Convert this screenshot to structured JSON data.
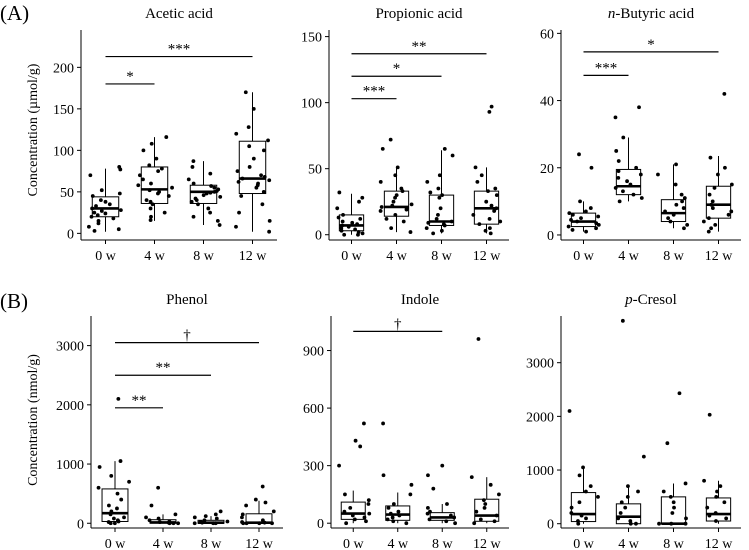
{
  "labels": {
    "panel_a": "(A)",
    "panel_b": "(B)",
    "ylabel_a": "Concentration (µmol/g)",
    "ylabel_b": "Concentration (nmol/g)"
  },
  "chart_data": [
    {
      "type": "box",
      "title": "Acetic acid",
      "title_pre": "",
      "title_post": "Acetic acid",
      "categories": [
        "0 w",
        "4 w",
        "8 w",
        "12 w"
      ],
      "ylabel": "Concentration (µmol/g)",
      "ylim": [
        -8,
        245
      ],
      "yticks": [
        0,
        50,
        100,
        150,
        200
      ],
      "boxes": [
        {
          "min": 2,
          "q1": 20,
          "median": 30,
          "q3": 44,
          "max": 78
        },
        {
          "min": 15,
          "q1": 36,
          "median": 53,
          "q3": 80,
          "max": 116
        },
        {
          "min": 10,
          "q1": 36,
          "median": 50,
          "q3": 58,
          "max": 87
        },
        {
          "min": 2,
          "q1": 48,
          "median": 66,
          "q3": 111,
          "max": 170
        }
      ],
      "points": [
        [
          80,
          77,
          70,
          52,
          48,
          45,
          40,
          38,
          35,
          33,
          30,
          28,
          27,
          25,
          24,
          22,
          20,
          18,
          15,
          12,
          8,
          5,
          3
        ],
        [
          116,
          108,
          100,
          90,
          82,
          78,
          75,
          70,
          65,
          60,
          58,
          55,
          52,
          50,
          48,
          45,
          40,
          38,
          35,
          30,
          25,
          20,
          16
        ],
        [
          87,
          80,
          72,
          65,
          60,
          57,
          55,
          53,
          51,
          50,
          49,
          48,
          46,
          44,
          42,
          40,
          38,
          35,
          30,
          25,
          20,
          15,
          10
        ],
        [
          170,
          150,
          128,
          120,
          112,
          105,
          100,
          90,
          80,
          75,
          70,
          68,
          66,
          64,
          62,
          60,
          58,
          55,
          50,
          45,
          35,
          25,
          15,
          8,
          2
        ]
      ],
      "significance": [
        {
          "from": "0 w",
          "to": "4 w",
          "y": 180,
          "label": "*"
        },
        {
          "from": "0 w",
          "to": "12 w",
          "y": 213,
          "label": "***"
        }
      ]
    },
    {
      "type": "box",
      "title": "Propionic acid",
      "title_pre": "",
      "title_post": "Propionic acid",
      "categories": [
        "0 w",
        "4 w",
        "8 w",
        "12 w"
      ],
      "ylabel": "",
      "ylim": [
        -4,
        155
      ],
      "yticks": [
        0,
        50,
        100,
        150
      ],
      "boxes": [
        {
          "min": 0,
          "q1": 3,
          "median": 7,
          "q3": 15,
          "max": 31
        },
        {
          "min": 2,
          "q1": 14,
          "median": 21,
          "q3": 33,
          "max": 51
        },
        {
          "min": 1,
          "q1": 7,
          "median": 10,
          "q3": 30,
          "max": 64
        },
        {
          "min": 1,
          "q1": 8,
          "median": 20,
          "q3": 33,
          "max": 51
        }
      ],
      "points": [
        [
          32,
          28,
          25,
          20,
          15,
          13,
          12,
          10,
          9,
          8,
          7,
          6,
          5,
          4,
          3,
          2,
          1,
          0,
          0
        ],
        [
          72,
          65,
          51,
          45,
          40,
          35,
          33,
          30,
          28,
          25,
          23,
          22,
          21,
          20,
          19,
          18,
          15,
          12,
          10,
          5,
          2
        ],
        [
          65,
          60,
          45,
          40,
          35,
          32,
          30,
          28,
          20,
          15,
          12,
          10,
          9,
          8,
          7,
          5,
          3,
          1
        ],
        [
          97,
          93,
          51,
          45,
          40,
          35,
          33,
          30,
          25,
          22,
          20,
          18,
          15,
          12,
          10,
          8,
          5,
          3,
          1
        ]
      ],
      "significance": [
        {
          "from": "0 w",
          "to": "4 w",
          "y": 103,
          "label": "***"
        },
        {
          "from": "0 w",
          "to": "8 w",
          "y": 120,
          "label": "*"
        },
        {
          "from": "0 w",
          "to": "12 w",
          "y": 137,
          "label": "**"
        }
      ]
    },
    {
      "type": "box",
      "title": "n-Butyric acid",
      "title_pre": "n",
      "title_post": "-Butyric acid",
      "categories": [
        "0 w",
        "4 w",
        "8 w",
        "12 w"
      ],
      "ylabel": "",
      "ylim": [
        -1.5,
        61
      ],
      "yticks": [
        0,
        20,
        40,
        60
      ],
      "boxes": [
        {
          "min": 1,
          "q1": 2.5,
          "median": 4,
          "q3": 6.5,
          "max": 10
        },
        {
          "min": 10,
          "q1": 12,
          "median": 14.5,
          "q3": 19.5,
          "max": 29
        },
        {
          "min": 2,
          "q1": 4,
          "median": 6.5,
          "q3": 10.5,
          "max": 21
        },
        {
          "min": 1,
          "q1": 5,
          "median": 9,
          "q3": 14.5,
          "max": 23.5
        }
      ],
      "points": [
        [
          24,
          20,
          10,
          8,
          7,
          6.5,
          6,
          5.5,
          5,
          4.5,
          4,
          3.5,
          3,
          2.5,
          2,
          1.5,
          1
        ],
        [
          38,
          35,
          29,
          25,
          22,
          20,
          19,
          18,
          17,
          16,
          15,
          14,
          13,
          12,
          11,
          10
        ],
        [
          21,
          18,
          15,
          12,
          11,
          10,
          9,
          8,
          7,
          6,
          5,
          4,
          3,
          2
        ],
        [
          42,
          23,
          20,
          18,
          15,
          14,
          12,
          10,
          9,
          8,
          7,
          6,
          5,
          4,
          3,
          2,
          1
        ]
      ],
      "significance": [
        {
          "from": "0 w",
          "to": "4 w",
          "y": 47.5,
          "label": "***"
        },
        {
          "from": "0 w",
          "to": "12 w",
          "y": 54.5,
          "label": "*"
        }
      ]
    },
    {
      "type": "box",
      "title": "Phenol",
      "title_pre": "",
      "title_post": "Phenol",
      "categories": [
        "0 w",
        "4 w",
        "8 w",
        "12 w"
      ],
      "ylabel": "Concentration (nmol/g)",
      "ylim": [
        -80,
        3500
      ],
      "yticks": [
        0,
        1000,
        2000,
        3000
      ],
      "boxes": [
        {
          "min": 0,
          "q1": 30,
          "median": 170,
          "q3": 580,
          "max": 1050
        },
        {
          "min": 0,
          "q1": 0,
          "median": 15,
          "q3": 60,
          "max": 150
        },
        {
          "min": 0,
          "q1": 0,
          "median": 10,
          "q3": 50,
          "max": 120
        },
        {
          "min": 0,
          "q1": 0,
          "median": 10,
          "q3": 160,
          "max": 380
        }
      ],
      "points": [
        [
          2100,
          1050,
          950,
          800,
          700,
          600,
          500,
          400,
          300,
          250,
          200,
          150,
          100,
          80,
          50,
          30,
          20,
          0,
          0
        ],
        [
          600,
          300,
          150,
          100,
          80,
          50,
          30,
          20,
          10,
          0,
          0,
          0
        ],
        [
          200,
          150,
          120,
          100,
          80,
          50,
          30,
          20,
          10,
          0,
          0,
          0
        ],
        [
          620,
          400,
          350,
          300,
          200,
          150,
          100,
          50,
          20,
          10,
          0,
          0,
          0,
          0
        ]
      ],
      "significance": [
        {
          "from": "0 w",
          "to": "4 w",
          "y": 1950,
          "label": "**"
        },
        {
          "from": "0 w",
          "to": "8 w",
          "y": 2500,
          "label": "**"
        },
        {
          "from": "0 w",
          "to": "12 w",
          "y": 3050,
          "label": "†"
        }
      ]
    },
    {
      "type": "box",
      "title": "Indole",
      "title_pre": "",
      "title_post": "Indole",
      "categories": [
        "0 w",
        "4 w",
        "8 w",
        "12 w"
      ],
      "ylabel": "",
      "ylim": [
        -25,
        1080
      ],
      "yticks": [
        0,
        300,
        600,
        900
      ],
      "boxes": [
        {
          "min": 0,
          "q1": 20,
          "median": 50,
          "q3": 110,
          "max": 170
        },
        {
          "min": 0,
          "q1": 15,
          "median": 45,
          "q3": 90,
          "max": 160
        },
        {
          "min": 0,
          "q1": 15,
          "median": 30,
          "q3": 55,
          "max": 100
        },
        {
          "min": 0,
          "q1": 10,
          "median": 40,
          "q3": 125,
          "max": 240
        }
      ],
      "points": [
        [
          520,
          430,
          400,
          300,
          150,
          120,
          100,
          80,
          60,
          50,
          40,
          30,
          20,
          10,
          0
        ],
        [
          520,
          250,
          200,
          150,
          100,
          80,
          60,
          50,
          40,
          30,
          20,
          10,
          0
        ],
        [
          300,
          250,
          180,
          100,
          80,
          60,
          50,
          40,
          30,
          20,
          10,
          0
        ],
        [
          960,
          240,
          200,
          150,
          120,
          100,
          80,
          60,
          40,
          20,
          10,
          0
        ]
      ],
      "significance": [
        {
          "from": "0 w",
          "to": "8 w",
          "y": 1000,
          "label": "†"
        }
      ]
    },
    {
      "type": "box",
      "title": "p-Cresol",
      "title_pre": "p",
      "title_post": "-Cresol",
      "categories": [
        "0 w",
        "4 w",
        "8 w",
        "12 w"
      ],
      "ylabel": "",
      "ylim": [
        -80,
        3870
      ],
      "yticks": [
        0,
        1000,
        2000,
        3000
      ],
      "boxes": [
        {
          "min": 0,
          "q1": 40,
          "median": 180,
          "q3": 580,
          "max": 1050
        },
        {
          "min": 0,
          "q1": 0,
          "median": 130,
          "q3": 370,
          "max": 700
        },
        {
          "min": 0,
          "q1": 0,
          "median": 0,
          "q3": 500,
          "max": 750
        },
        {
          "min": 0,
          "q1": 50,
          "median": 180,
          "q3": 480,
          "max": 800
        }
      ],
      "points": [
        [
          2100,
          1050,
          900,
          700,
          600,
          500,
          400,
          300,
          200,
          150,
          100,
          50,
          0
        ],
        [
          3780,
          1250,
          700,
          600,
          500,
          400,
          300,
          200,
          100,
          50,
          0,
          0
        ],
        [
          2430,
          1500,
          750,
          600,
          500,
          400,
          300,
          200,
          100,
          0,
          0,
          0
        ],
        [
          2030,
          800,
          700,
          600,
          500,
          400,
          300,
          200,
          150,
          100,
          50
        ]
      ],
      "significance": []
    }
  ]
}
